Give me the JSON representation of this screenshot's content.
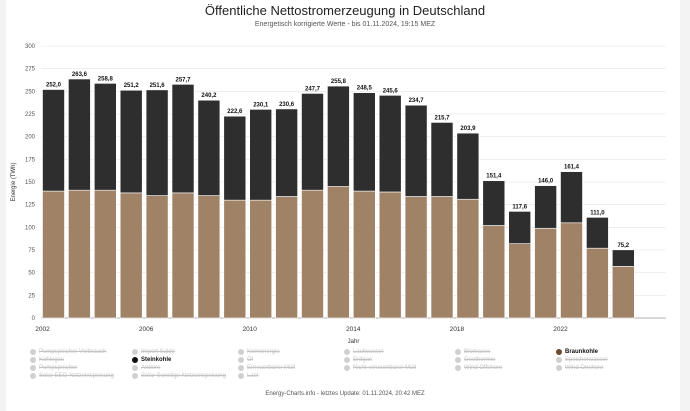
{
  "chart_data": {
    "type": "bar",
    "stacked": true,
    "title": "Öffentliche Nettostromerzeugung in Deutschland",
    "subtitle": "Energetisch korrigierte Werte - bis 01.11.2024, 19:15 MEZ",
    "xlabel": "Jahr",
    "ylabel": "Energie (TWh)",
    "ylim": [
      0,
      300
    ],
    "yticks": [
      "0",
      "25",
      "50",
      "75",
      "100",
      "125",
      "150",
      "175",
      "200",
      "225",
      "250",
      "275",
      "300"
    ],
    "xtick_labels": [
      "2002",
      "2006",
      "2010",
      "2014",
      "2018",
      "2022"
    ],
    "grid": true,
    "legend_position": "bottom",
    "categories": [
      "2002",
      "2003",
      "2004",
      "2005",
      "2006",
      "2007",
      "2008",
      "2009",
      "2010",
      "2011",
      "2012",
      "2013",
      "2014",
      "2015",
      "2016",
      "2017",
      "2018",
      "2019",
      "2020",
      "2021",
      "2022",
      "2023",
      "2024"
    ],
    "series": [
      {
        "name": "Braunkohle",
        "color": "#a08266",
        "values": [
          140,
          141,
          141,
          138,
          135,
          138,
          135,
          130,
          130,
          134,
          141,
          145,
          140,
          139,
          134,
          134,
          131,
          102,
          82,
          99,
          105,
          77,
          57
        ]
      },
      {
        "name": "Steinkohle",
        "color": "#2e2e2e",
        "values": [
          112.0,
          122.6,
          117.8,
          113.2,
          116.6,
          119.7,
          105.2,
          92.6,
          100.1,
          96.6,
          106.7,
          110.8,
          108.5,
          106.6,
          100.7,
          81.7,
          72.9,
          49.4,
          35.6,
          47.0,
          56.4,
          34.0,
          18.2
        ]
      }
    ],
    "totals": [
      "252,0",
      "263,6",
      "258,8",
      "251,2",
      "251,6",
      "257,7",
      "240,2",
      "222,6",
      "230,1",
      "230,6",
      "247,7",
      "255,8",
      "248,5",
      "245,6",
      "234,7",
      "215,7",
      "203,9",
      "151,4",
      "117,6",
      "146,0",
      "161,4",
      "111,0",
      "75,2"
    ]
  },
  "legend": {
    "items": [
      {
        "label": "Pumpspeicher Verbrauch",
        "active": false
      },
      {
        "label": "Kohlegas",
        "active": false
      },
      {
        "label": "Pumpspeicher",
        "active": false
      },
      {
        "label": "Solar EEG-Netzeinspeisung",
        "active": false
      },
      {
        "label": "Import Saldo",
        "active": false
      },
      {
        "label": "Steinkohle",
        "active": true,
        "color": "#111111"
      },
      {
        "label": "Andere",
        "active": false
      },
      {
        "label": "Solar Sonstige Netzeinspeisung",
        "active": false
      },
      {
        "label": "Kernenergie",
        "active": false
      },
      {
        "label": "Öl",
        "active": false
      },
      {
        "label": "Erneuerbarer Müll",
        "active": false
      },
      {
        "label": "Last",
        "active": false
      },
      {
        "label": "Laufwasser",
        "active": false
      },
      {
        "label": "Erdgas",
        "active": false
      },
      {
        "label": "Nicht-erneuerbarer Müll",
        "active": false
      },
      {
        "label": "Biomasse",
        "active": false
      },
      {
        "label": "Geothermie",
        "active": false
      },
      {
        "label": "Wind Offshore",
        "active": false
      },
      {
        "label": "Braunkohle",
        "active": true,
        "color": "#6b4a2f"
      },
      {
        "label": "Speicherwasser",
        "active": false
      },
      {
        "label": "Wind Onshore",
        "active": false
      }
    ]
  },
  "footer": "Energy-Charts.info - letztes Update: 01.11.2024, 20:42 MEZ"
}
